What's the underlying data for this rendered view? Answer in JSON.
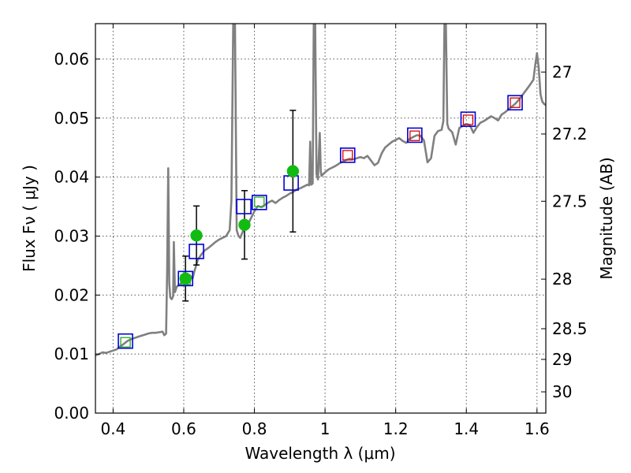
{
  "chart_data": {
    "type": "scatter",
    "xlabel": "Wavelength  λ (μm)",
    "ylabel": "Flux  Fν  ( μJy )",
    "y2label": "Magnitude (AB)",
    "xlim": [
      0.35,
      1.625
    ],
    "ylim": [
      0.0,
      0.066
    ],
    "grid": true,
    "x_ticks": [
      0.4,
      0.6,
      0.8,
      1.0,
      1.2,
      1.4,
      1.6
    ],
    "x_tick_labels": [
      "0.4",
      "0.6",
      "0.8",
      "1",
      "1.2",
      "1.4",
      "1.6"
    ],
    "y_ticks": [
      0.0,
      0.01,
      0.02,
      0.03,
      0.04,
      0.05,
      0.06
    ],
    "y_tick_labels": [
      "0.00",
      "0.01",
      "0.02",
      "0.03",
      "0.04",
      "0.05",
      "0.06"
    ],
    "y2_ticks": [
      {
        "label": "27",
        "flux": 0.0578
      },
      {
        "label": "27.2",
        "flux": 0.0473
      },
      {
        "label": "27.5",
        "flux": 0.0359
      },
      {
        "label": "28",
        "flux": 0.0227
      },
      {
        "label": "28.5",
        "flux": 0.0143
      },
      {
        "label": "29",
        "flux": 0.0091
      },
      {
        "label": "30",
        "flux": 0.0036
      }
    ],
    "colors": {
      "sed": "#808080",
      "measured": "#11bb11",
      "model_box": "#0000dd",
      "visible_box": "#22aa22",
      "nir_box": "#dd0000",
      "errorbar": "#000000",
      "grid": "#555555"
    },
    "series": [
      {
        "type": "line",
        "points": [
          [
            0.35,
            0.0098
          ],
          [
            0.36,
            0.01
          ],
          [
            0.37,
            0.0103
          ],
          [
            0.38,
            0.0102
          ],
          [
            0.39,
            0.0104
          ],
          [
            0.4,
            0.0106
          ],
          [
            0.41,
            0.0108
          ],
          [
            0.42,
            0.0113
          ],
          [
            0.43,
            0.0117
          ],
          [
            0.44,
            0.0122
          ],
          [
            0.45,
            0.0125
          ],
          [
            0.46,
            0.0127
          ],
          [
            0.47,
            0.0129
          ],
          [
            0.48,
            0.0131
          ],
          [
            0.49,
            0.0133
          ],
          [
            0.5,
            0.0135
          ],
          [
            0.51,
            0.0136
          ],
          [
            0.52,
            0.0136
          ],
          [
            0.53,
            0.0137
          ],
          [
            0.54,
            0.0138
          ],
          [
            0.545,
            0.0132
          ],
          [
            0.55,
            0.0135
          ],
          [
            0.553,
            0.024
          ],
          [
            0.556,
            0.0415
          ],
          [
            0.559,
            0.022
          ],
          [
            0.562,
            0.0196
          ],
          [
            0.566,
            0.0193
          ],
          [
            0.57,
            0.0198
          ],
          [
            0.572,
            0.029
          ],
          [
            0.575,
            0.0205
          ],
          [
            0.58,
            0.0214
          ],
          [
            0.59,
            0.0219
          ],
          [
            0.6,
            0.0224
          ],
          [
            0.61,
            0.0231
          ],
          [
            0.62,
            0.0232
          ],
          [
            0.625,
            0.0228
          ],
          [
            0.63,
            0.024
          ],
          [
            0.64,
            0.026
          ],
          [
            0.65,
            0.0269
          ],
          [
            0.66,
            0.0276
          ],
          [
            0.67,
            0.028
          ],
          [
            0.68,
            0.0285
          ],
          [
            0.69,
            0.029
          ],
          [
            0.7,
            0.0294
          ],
          [
            0.71,
            0.0297
          ],
          [
            0.72,
            0.03
          ],
          [
            0.725,
            0.0305
          ],
          [
            0.73,
            0.031
          ],
          [
            0.735,
            0.036
          ],
          [
            0.74,
            0.066
          ],
          [
            0.745,
            0.066
          ],
          [
            0.75,
            0.031
          ],
          [
            0.755,
            0.03
          ],
          [
            0.76,
            0.0297
          ],
          [
            0.77,
            0.0312
          ],
          [
            0.78,
            0.0318
          ],
          [
            0.79,
            0.033
          ],
          [
            0.8,
            0.0342
          ],
          [
            0.81,
            0.0351
          ],
          [
            0.82,
            0.0349
          ],
          [
            0.83,
            0.0353
          ],
          [
            0.84,
            0.0357
          ],
          [
            0.85,
            0.036
          ],
          [
            0.86,
            0.0356
          ],
          [
            0.87,
            0.0361
          ],
          [
            0.88,
            0.0365
          ],
          [
            0.89,
            0.0368
          ],
          [
            0.9,
            0.0372
          ],
          [
            0.91,
            0.0375
          ],
          [
            0.92,
            0.0379
          ],
          [
            0.93,
            0.0381
          ],
          [
            0.94,
            0.0384
          ],
          [
            0.95,
            0.0387
          ],
          [
            0.955,
            0.0386
          ],
          [
            0.958,
            0.046
          ],
          [
            0.961,
            0.0387
          ],
          [
            0.965,
            0.0389
          ],
          [
            0.968,
            0.066
          ],
          [
            0.972,
            0.066
          ],
          [
            0.976,
            0.0405
          ],
          [
            0.98,
            0.0396
          ],
          [
            0.985,
            0.0475
          ],
          [
            0.988,
            0.041
          ],
          [
            0.99,
            0.0402
          ],
          [
            1.0,
            0.0408
          ],
          [
            1.01,
            0.0413
          ],
          [
            1.02,
            0.0416
          ],
          [
            1.03,
            0.0419
          ],
          [
            1.04,
            0.0423
          ],
          [
            1.05,
            0.0426
          ],
          [
            1.06,
            0.0429
          ],
          [
            1.07,
            0.0431
          ],
          [
            1.08,
            0.043
          ],
          [
            1.09,
            0.0432
          ],
          [
            1.1,
            0.0434
          ],
          [
            1.11,
            0.0432
          ],
          [
            1.12,
            0.0436
          ],
          [
            1.13,
            0.0428
          ],
          [
            1.14,
            0.042
          ],
          [
            1.15,
            0.0424
          ],
          [
            1.16,
            0.044
          ],
          [
            1.17,
            0.045
          ],
          [
            1.18,
            0.0455
          ],
          [
            1.19,
            0.046
          ],
          [
            1.2,
            0.0463
          ],
          [
            1.21,
            0.0466
          ],
          [
            1.22,
            0.0461
          ],
          [
            1.23,
            0.0458
          ],
          [
            1.24,
            0.0465
          ],
          [
            1.25,
            0.0468
          ],
          [
            1.26,
            0.0471
          ],
          [
            1.27,
            0.047
          ],
          [
            1.28,
            0.0462
          ],
          [
            1.29,
            0.0425
          ],
          [
            1.3,
            0.0432
          ],
          [
            1.31,
            0.047
          ],
          [
            1.32,
            0.0478
          ],
          [
            1.33,
            0.048
          ],
          [
            1.335,
            0.0495
          ],
          [
            1.338,
            0.066
          ],
          [
            1.342,
            0.066
          ],
          [
            1.346,
            0.049
          ],
          [
            1.35,
            0.0482
          ],
          [
            1.36,
            0.0476
          ],
          [
            1.37,
            0.0455
          ],
          [
            1.38,
            0.0483
          ],
          [
            1.39,
            0.0487
          ],
          [
            1.4,
            0.049
          ],
          [
            1.41,
            0.0488
          ],
          [
            1.42,
            0.0475
          ],
          [
            1.43,
            0.0485
          ],
          [
            1.44,
            0.0492
          ],
          [
            1.45,
            0.0495
          ],
          [
            1.46,
            0.0499
          ],
          [
            1.47,
            0.0503
          ],
          [
            1.48,
            0.05
          ],
          [
            1.49,
            0.0496
          ],
          [
            1.5,
            0.0506
          ],
          [
            1.51,
            0.051
          ],
          [
            1.52,
            0.0515
          ],
          [
            1.53,
            0.052
          ],
          [
            1.54,
            0.0525
          ],
          [
            1.55,
            0.0532
          ],
          [
            1.56,
            0.054
          ],
          [
            1.57,
            0.0548
          ],
          [
            1.58,
            0.0556
          ],
          [
            1.59,
            0.0565
          ],
          [
            1.595,
            0.059
          ],
          [
            1.6,
            0.061
          ],
          [
            1.605,
            0.0585
          ],
          [
            1.61,
            0.054
          ],
          [
            1.615,
            0.0528
          ],
          [
            1.62,
            0.0524
          ],
          [
            1.625,
            0.0522
          ]
        ]
      },
      {
        "type": "scatter",
        "marker": "filled-circle",
        "points": [
          {
            "x": 0.605,
            "y": 0.0228,
            "err": 0.0038
          },
          {
            "x": 0.636,
            "y": 0.0301,
            "err": 0.005
          },
          {
            "x": 0.772,
            "y": 0.0319,
            "err": 0.0058
          },
          {
            "x": 0.909,
            "y": 0.041,
            "err": 0.0103
          }
        ]
      },
      {
        "type": "scatter",
        "marker": "open-square",
        "points": [
          {
            "x": 0.435,
            "y": 0.0122
          },
          {
            "x": 0.605,
            "y": 0.0228
          },
          {
            "x": 0.636,
            "y": 0.0274
          },
          {
            "x": 0.77,
            "y": 0.035
          },
          {
            "x": 0.814,
            "y": 0.0357
          },
          {
            "x": 0.904,
            "y": 0.039
          },
          {
            "x": 1.064,
            "y": 0.0437
          },
          {
            "x": 1.254,
            "y": 0.0471
          },
          {
            "x": 1.405,
            "y": 0.0498
          },
          {
            "x": 1.538,
            "y": 0.0526
          }
        ]
      },
      {
        "type": "scatter",
        "marker": "small-open-square",
        "points": [
          {
            "x": 0.435,
            "y": 0.012
          },
          {
            "x": 0.605,
            "y": 0.0226
          },
          {
            "x": 0.814,
            "y": 0.0358
          }
        ]
      },
      {
        "type": "scatter",
        "marker": "small-open-square",
        "points": [
          {
            "x": 1.064,
            "y": 0.0437
          },
          {
            "x": 1.254,
            "y": 0.047
          },
          {
            "x": 1.405,
            "y": 0.0497
          },
          {
            "x": 1.538,
            "y": 0.0526
          }
        ]
      }
    ]
  }
}
